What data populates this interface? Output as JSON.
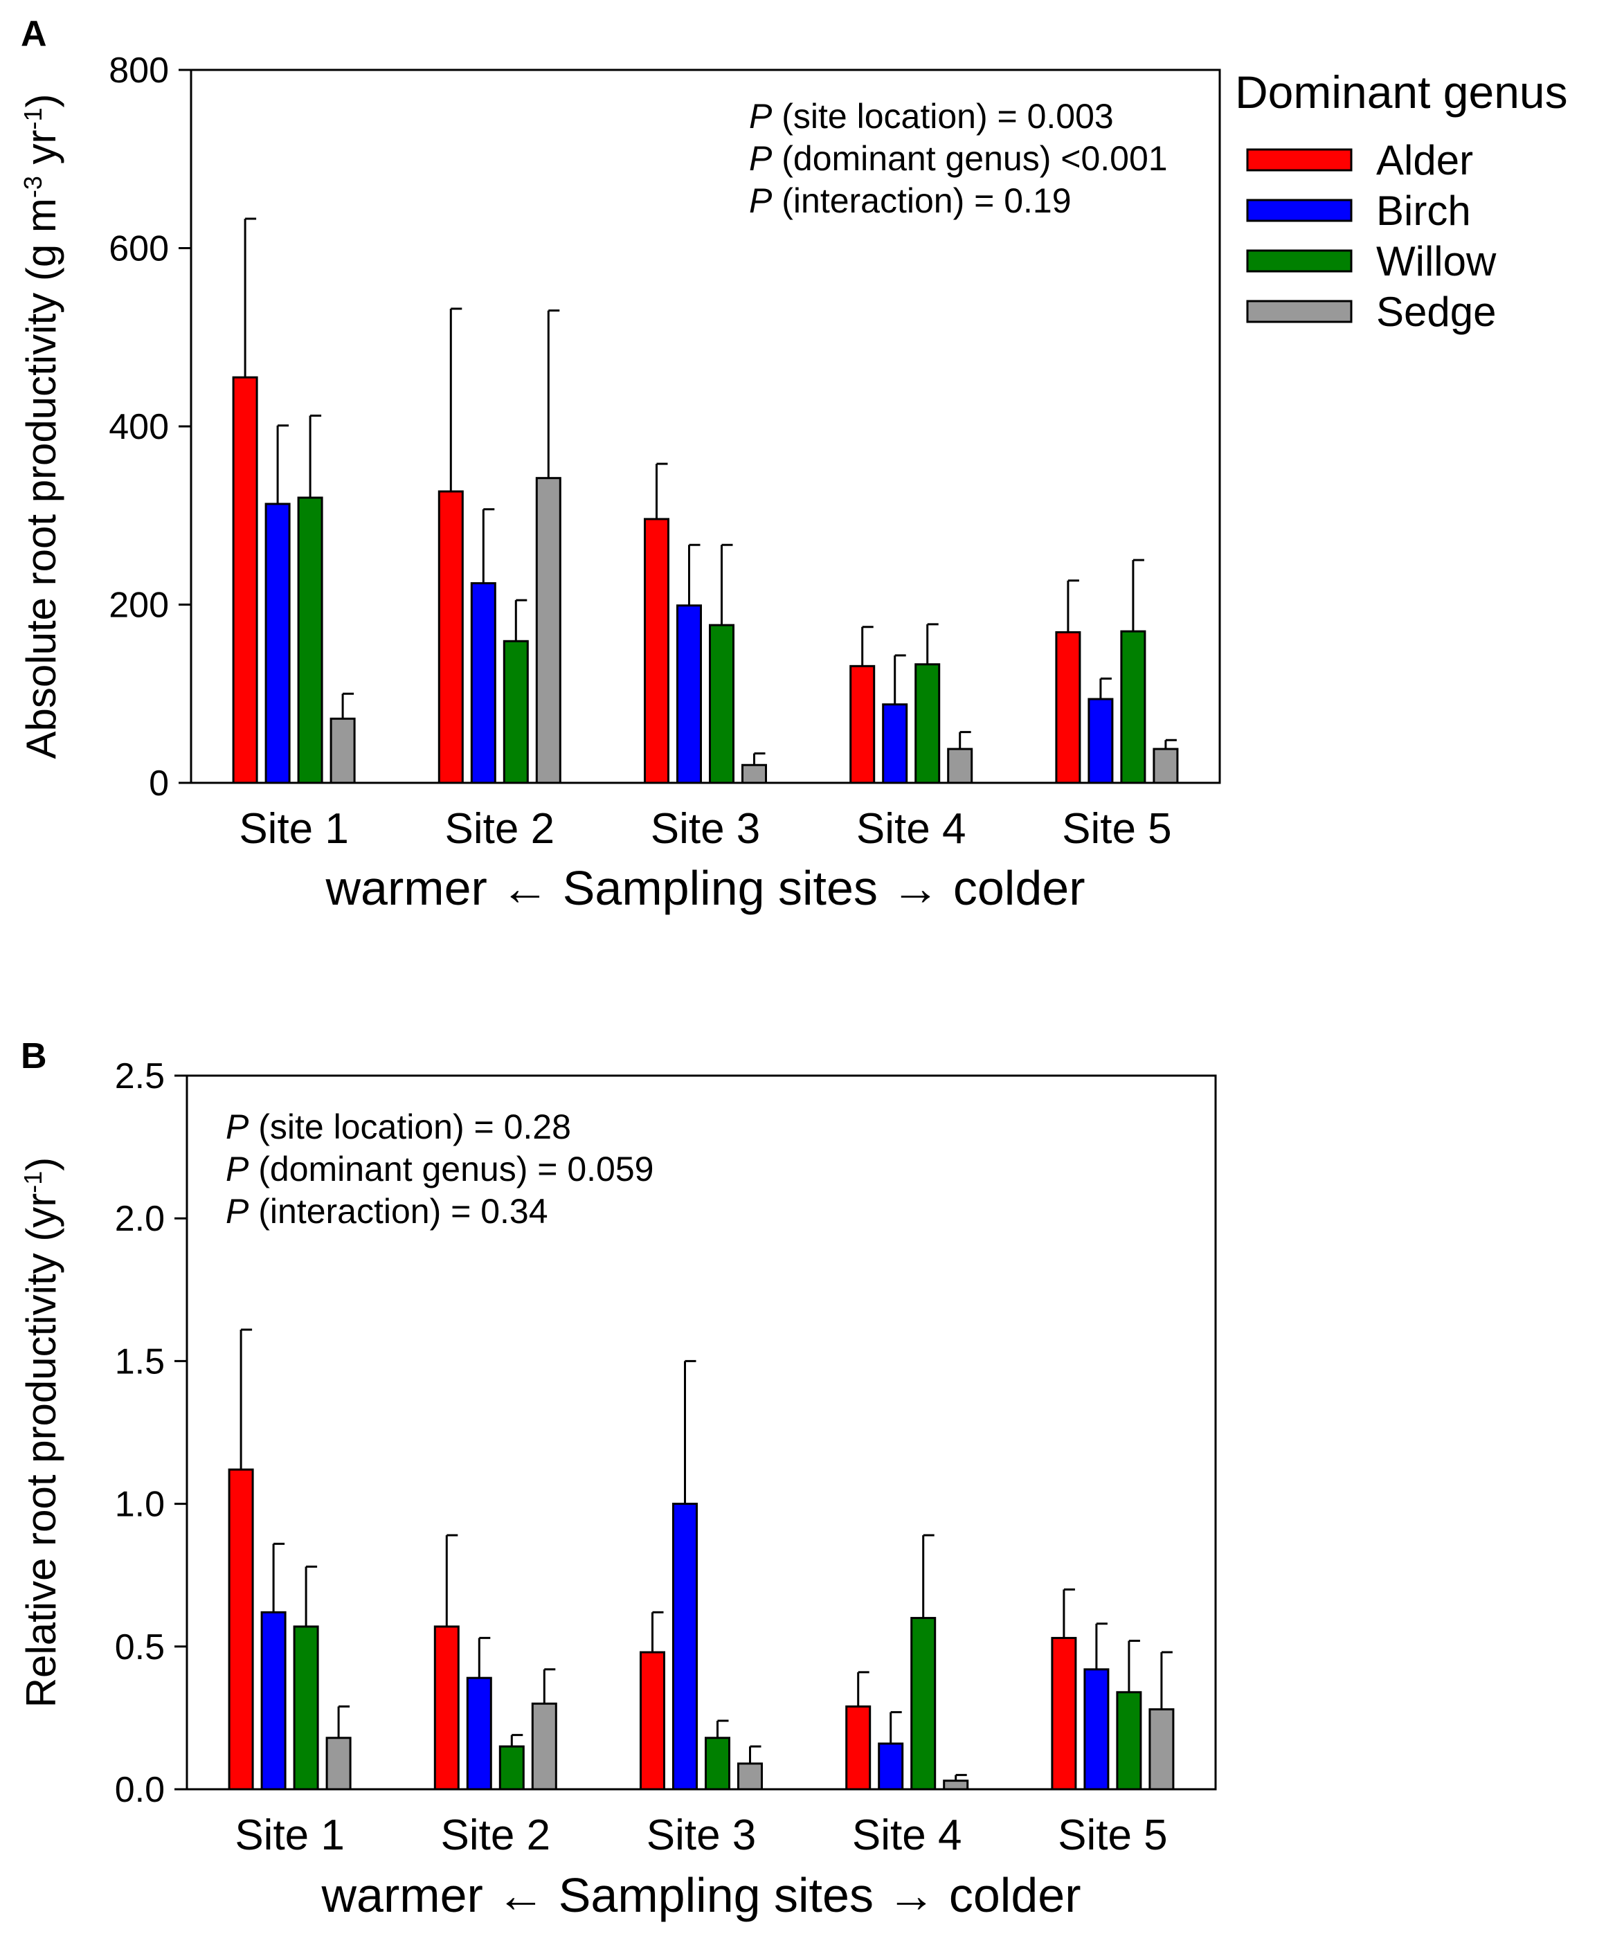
{
  "figure": {
    "legend": {
      "title": "Dominant genus",
      "entries": [
        {
          "name": "Alder",
          "color": "#ff0000"
        },
        {
          "name": "Birch",
          "color": "#0000ff"
        },
        {
          "name": "Willow",
          "color": "#008000"
        },
        {
          "name": "Sedge",
          "color": "#999999"
        }
      ]
    }
  },
  "chart_data": [
    {
      "panel": "A",
      "type": "bar",
      "title": "",
      "xlabel_left": "warmer",
      "xlabel_center": "Sampling sites",
      "xlabel_right": "colder",
      "ylabel": "Absolute root productivity (g m",
      "ylabel_sup1": "-3",
      "ylabel_mid": " yr",
      "ylabel_sup2": "-1",
      "ylabel_end": ")",
      "ylim": [
        0,
        800
      ],
      "yticks": [
        "0",
        "200",
        "400",
        "600",
        "800"
      ],
      "categories": [
        "Site 1",
        "Site 2",
        "Site 3",
        "Site 4",
        "Site 5"
      ],
      "series": [
        {
          "name": "Alder",
          "color": "#ff0000",
          "values": [
            455,
            327,
            296,
            131,
            169
          ],
          "errors": [
            178,
            205,
            62,
            44,
            58
          ]
        },
        {
          "name": "Birch",
          "color": "#0000ff",
          "values": [
            313,
            224,
            199,
            88,
            94
          ],
          "errors": [
            88,
            83,
            68,
            55,
            23
          ]
        },
        {
          "name": "Willow",
          "color": "#008000",
          "values": [
            320,
            159,
            177,
            133,
            170
          ],
          "errors": [
            92,
            46,
            90,
            45,
            80
          ]
        },
        {
          "name": "Sedge",
          "color": "#999999",
          "values": [
            72,
            342,
            20,
            38,
            38
          ],
          "errors": [
            28,
            188,
            13,
            19,
            10
          ]
        }
      ],
      "annotations": [
        {
          "italic": "P",
          "text": " (site location) = 0.003"
        },
        {
          "italic": "P",
          "text": " (dominant genus) <0.001"
        },
        {
          "italic": "P",
          "text": " (interaction) = 0.19"
        }
      ]
    },
    {
      "panel": "B",
      "type": "bar",
      "title": "",
      "xlabel_left": "warmer",
      "xlabel_center": "Sampling sites",
      "xlabel_right": "colder",
      "ylabel": "Relative root productivity  (yr",
      "ylabel_sup1": "-1",
      "ylabel_end": ")",
      "ylim": [
        0,
        2.5
      ],
      "yticks": [
        "0.0",
        "0.5",
        "1.0",
        "1.5",
        "2.0",
        "2.5"
      ],
      "categories": [
        "Site 1",
        "Site 2",
        "Site 3",
        "Site 4",
        "Site 5"
      ],
      "series": [
        {
          "name": "Alder",
          "color": "#ff0000",
          "values": [
            1.12,
            0.57,
            0.48,
            0.29,
            0.53
          ],
          "errors": [
            0.49,
            0.32,
            0.14,
            0.12,
            0.17
          ]
        },
        {
          "name": "Birch",
          "color": "#0000ff",
          "values": [
            0.62,
            0.39,
            1.0,
            0.16,
            0.42
          ],
          "errors": [
            0.24,
            0.14,
            0.5,
            0.11,
            0.16
          ]
        },
        {
          "name": "Willow",
          "color": "#008000",
          "values": [
            0.57,
            0.15,
            0.18,
            0.6,
            0.34
          ],
          "errors": [
            0.21,
            0.04,
            0.06,
            0.29,
            0.18
          ]
        },
        {
          "name": "Sedge",
          "color": "#999999",
          "values": [
            0.18,
            0.3,
            0.09,
            0.03,
            0.28
          ],
          "errors": [
            0.11,
            0.12,
            0.06,
            0.02,
            0.2
          ]
        }
      ],
      "annotations": [
        {
          "italic": "P",
          "text": " (site location) = 0.28"
        },
        {
          "italic": "P",
          "text": " (dominant genus) = 0.059"
        },
        {
          "italic": "P",
          "text": " (interaction) = 0.34"
        }
      ]
    }
  ]
}
